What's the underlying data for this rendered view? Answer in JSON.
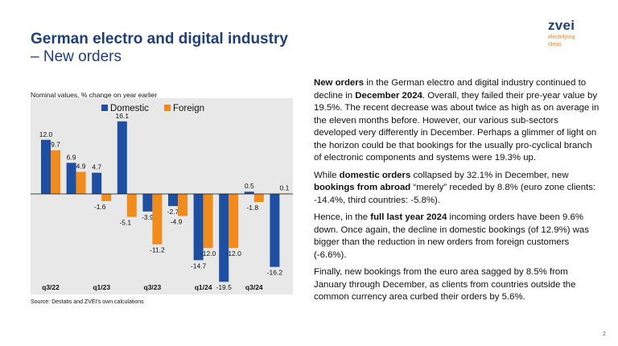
{
  "title": "German electro and digital industry",
  "subtitle": "– New orders",
  "logo": {
    "name": "zvei",
    "tagline_line1": "electrifying",
    "tagline_line2": "ideas"
  },
  "chart_note": "Nominal values, % change on year earlier",
  "source": "Source: Destatis and ZVEI's own calculations",
  "page_number": "2",
  "colors": {
    "domestic": "#1e4fa0",
    "foreign": "#f08c1e",
    "title": "#1f3f7a",
    "plot_bg": "#e8e8e8"
  },
  "chart_data": {
    "type": "bar",
    "categories": [
      "",
      "",
      "",
      "",
      "",
      "",
      "",
      "",
      "",
      ""
    ],
    "x_tick_labels": [
      {
        "index": 0,
        "label": "q3/22"
      },
      {
        "index": 2,
        "label": "q1/23"
      },
      {
        "index": 4,
        "label": "q3/23"
      },
      {
        "index": 6,
        "label": "q1/24"
      },
      {
        "index": 8,
        "label": "q3/24"
      }
    ],
    "series": [
      {
        "name": "Domestic",
        "values": [
          12.0,
          6.9,
          4.7,
          16.1,
          -3.9,
          -2.7,
          -14.7,
          -19.5,
          0.5,
          -16.2
        ]
      },
      {
        "name": "Foreign",
        "values": [
          9.7,
          4.9,
          -1.6,
          -5.1,
          -11.2,
          -4.9,
          -12.0,
          -12.0,
          -1.8,
          0.1
        ]
      }
    ],
    "data_labels": {
      "Domestic": [
        "12.0",
        "6.9",
        "4.7",
        "16.1",
        "-3.9",
        "-2.7",
        "-14.7",
        "-19.5",
        "0.5",
        "-16.2"
      ],
      "Foreign": [
        "9.7",
        "4.9",
        "-1.6",
        "-5.1",
        "-11.2",
        "-4.9",
        "-12.0",
        "-12.0",
        "-1.8",
        "0.1"
      ]
    },
    "legend_position": "top",
    "ylim": [
      -23,
      21
    ],
    "grid": false
  },
  "paragraphs": [
    [
      {
        "b": true,
        "t": "New orders"
      },
      {
        "b": false,
        "t": " in the German electro and digital industry continued to decline in "
      },
      {
        "b": true,
        "t": "December 2024"
      },
      {
        "b": false,
        "t": ". Overall, they failed their pre-year value by 19.5%. The recent decrease was about twice as high as on average in the eleven months before. However, our various sub-sectors developed very differently in December. Perhaps a glimmer of light on the horizon could be that bookings for the usually pro-cyclical branch of electronic components and systems were 19.3% up."
      }
    ],
    [
      {
        "b": false,
        "t": "While "
      },
      {
        "b": true,
        "t": "domestic orders"
      },
      {
        "b": false,
        "t": " collapsed by 32.1% in December, new "
      },
      {
        "b": true,
        "t": "bookings from abroad"
      },
      {
        "b": false,
        "t": " “merely” receded by 8.8% (euro zone clients: -14.4%, third countries: -5.8%)."
      }
    ],
    [
      {
        "b": false,
        "t": "Hence, in the "
      },
      {
        "b": true,
        "t": "full last year 2024"
      },
      {
        "b": false,
        "t": " incoming orders have been 9.6% down. Once again, the decline in domestic bookings (of 12.9%) was bigger than the reduction in new orders from foreign customers (-6.6%)."
      }
    ],
    [
      {
        "b": false,
        "t": "Finally, new bookings from the euro area sagged by 8.5% from January through December, as clients from countries outside the common currency area curbed their orders by 5.6%."
      }
    ]
  ]
}
